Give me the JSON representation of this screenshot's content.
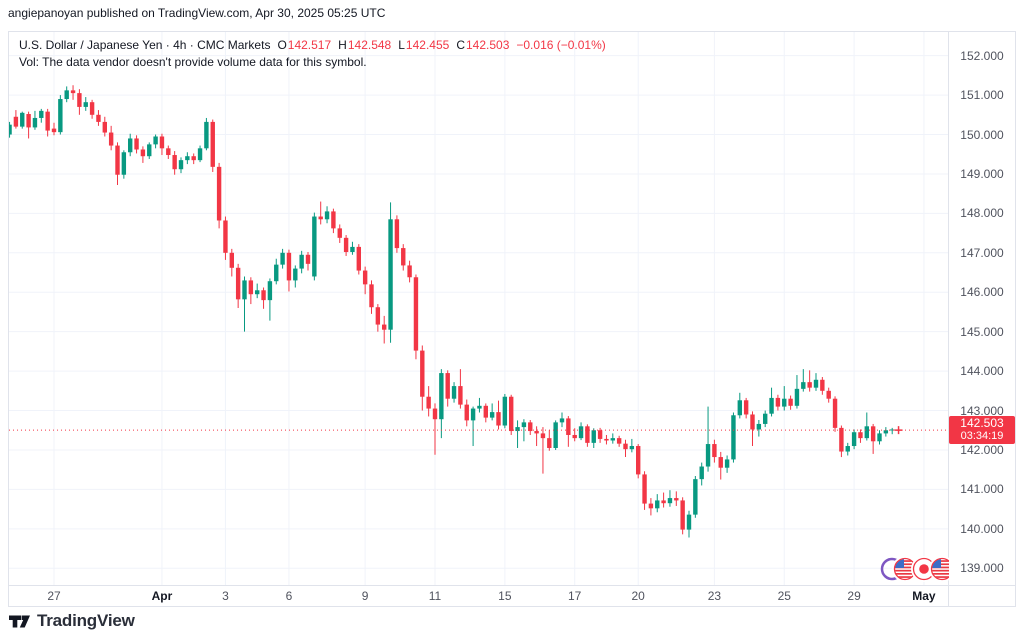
{
  "header": {
    "byline": "angiepanoyan published on TradingView.com, Apr 30, 2025 05:25 UTC"
  },
  "legend": {
    "title": "U.S. Dollar / Japanese Yen · 4h · CMC Markets",
    "ohlc": [
      {
        "label": "O",
        "value": "142.517"
      },
      {
        "label": "H",
        "value": "142.548"
      },
      {
        "label": "L",
        "value": "142.455"
      },
      {
        "label": "C",
        "value": "142.503"
      }
    ],
    "change": "−0.016 (−0.01%)",
    "vol_note": "Vol: The data vendor doesn't provide volume data for this symbol."
  },
  "price_scale": {
    "last_price_label": {
      "price": "142.503",
      "countdown": "03:34:19"
    }
  },
  "time_scale": {
    "labels": [
      {
        "index": 8,
        "text": "27",
        "bold": false
      },
      {
        "index": 25,
        "text": "Apr",
        "bold": true
      },
      {
        "index": 35,
        "text": "3",
        "bold": false
      },
      {
        "index": 45,
        "text": "6",
        "bold": false
      },
      {
        "index": 57,
        "text": "9",
        "bold": false
      },
      {
        "index": 68,
        "text": "11",
        "bold": false
      },
      {
        "index": 79,
        "text": "15",
        "bold": false
      },
      {
        "index": 90,
        "text": "17",
        "bold": false
      },
      {
        "index": 100,
        "text": "20",
        "bold": false
      },
      {
        "index": 112,
        "text": "23",
        "bold": false
      },
      {
        "index": 123,
        "text": "25",
        "bold": false
      },
      {
        "index": 134,
        "text": "29",
        "bold": false
      },
      {
        "index": 145,
        "text": "May",
        "bold": true
      }
    ]
  },
  "watermark_flags": [
    "us-flag",
    "japan-flag",
    "us-flag"
  ],
  "footer": {
    "brand": "TradingView"
  },
  "colors": {
    "up": "#089981",
    "down": "#f23645",
    "grid": "#f0f3fa",
    "border": "#e0e3eb",
    "text": "#131722",
    "scale_text": "#50535e",
    "badge_bg": "#f23645",
    "badge_text": "#ffffff"
  },
  "chart_data": {
    "type": "candlestick",
    "title": "U.S. Dollar / Japanese Yen",
    "interval": "4h",
    "exchange": "CMC Markets",
    "current_price": 142.503,
    "last_bar": {
      "open": 142.517,
      "high": 142.548,
      "low": 142.455,
      "close": 142.503
    },
    "price_axis": {
      "max": 152.6,
      "min": 138.55,
      "gridline_step": 1.0,
      "gridlines": [
        139,
        140,
        141,
        142,
        143,
        144,
        145,
        146,
        147,
        148,
        149,
        150,
        151,
        152
      ]
    },
    "x_axis": {
      "slots": 150,
      "origin": 2.2,
      "spacing": 6.35
    },
    "candles": [
      [
        149.82,
        150.05,
        149.68,
        150.0
      ],
      [
        150.0,
        150.32,
        149.92,
        150.25
      ],
      [
        150.45,
        150.62,
        150.15,
        150.2
      ],
      [
        150.2,
        150.58,
        150.15,
        150.55
      ],
      [
        150.52,
        150.58,
        149.9,
        150.18
      ],
      [
        150.18,
        150.6,
        150.12,
        150.42
      ],
      [
        150.42,
        150.65,
        150.3,
        150.6
      ],
      [
        150.58,
        150.65,
        149.95,
        150.1
      ],
      [
        150.15,
        150.3,
        149.98,
        150.06
      ],
      [
        150.06,
        151.0,
        150.0,
        150.9
      ],
      [
        150.9,
        151.22,
        150.82,
        151.12
      ],
      [
        151.12,
        151.25,
        150.88,
        151.05
      ],
      [
        151.05,
        151.15,
        150.5,
        150.7
      ],
      [
        150.7,
        150.95,
        150.6,
        150.82
      ],
      [
        150.82,
        150.88,
        150.4,
        150.5
      ],
      [
        150.5,
        150.62,
        150.22,
        150.32
      ],
      [
        150.32,
        150.45,
        149.95,
        150.05
      ],
      [
        150.05,
        150.22,
        149.6,
        149.72
      ],
      [
        149.72,
        149.8,
        148.72,
        148.98
      ],
      [
        148.98,
        149.6,
        148.88,
        149.55
      ],
      [
        149.55,
        150.02,
        149.45,
        149.9
      ],
      [
        149.9,
        149.98,
        149.52,
        149.62
      ],
      [
        149.62,
        149.7,
        149.28,
        149.45
      ],
      [
        149.45,
        149.8,
        149.38,
        149.75
      ],
      [
        149.75,
        150.0,
        149.65,
        149.95
      ],
      [
        149.95,
        150.02,
        149.48,
        149.65
      ],
      [
        149.65,
        149.72,
        149.38,
        149.48
      ],
      [
        149.48,
        149.58,
        148.98,
        149.12
      ],
      [
        149.12,
        149.42,
        149.02,
        149.35
      ],
      [
        149.35,
        149.55,
        149.25,
        149.45
      ],
      [
        149.45,
        149.52,
        149.25,
        149.35
      ],
      [
        149.35,
        149.72,
        149.3,
        149.65
      ],
      [
        149.65,
        150.42,
        149.6,
        150.32
      ],
      [
        150.32,
        150.38,
        149.05,
        149.18
      ],
      [
        149.18,
        149.28,
        147.62,
        147.82
      ],
      [
        147.82,
        147.92,
        146.82,
        147.0
      ],
      [
        147.0,
        147.1,
        146.4,
        146.62
      ],
      [
        146.62,
        146.72,
        145.6,
        145.82
      ],
      [
        145.82,
        146.4,
        145.0,
        146.3
      ],
      [
        146.3,
        146.38,
        145.7,
        145.95
      ],
      [
        145.95,
        146.22,
        145.85,
        146.05
      ],
      [
        146.05,
        146.12,
        145.58,
        145.8
      ],
      [
        145.8,
        146.35,
        145.28,
        146.28
      ],
      [
        146.28,
        146.85,
        146.2,
        146.7
      ],
      [
        146.7,
        147.1,
        146.6,
        147.0
      ],
      [
        147.0,
        147.08,
        146.02,
        146.3
      ],
      [
        146.3,
        146.68,
        146.12,
        146.6
      ],
      [
        146.6,
        147.05,
        146.48,
        146.95
      ],
      [
        146.95,
        147.02,
        146.55,
        146.72
      ],
      [
        146.4,
        148.02,
        146.3,
        147.92
      ],
      [
        147.92,
        148.3,
        147.72,
        147.85
      ],
      [
        147.85,
        148.18,
        147.75,
        148.05
      ],
      [
        148.05,
        148.12,
        147.5,
        147.62
      ],
      [
        147.62,
        147.72,
        147.25,
        147.38
      ],
      [
        147.38,
        147.45,
        146.92,
        147.02
      ],
      [
        147.02,
        147.28,
        146.95,
        147.15
      ],
      [
        147.15,
        147.22,
        146.45,
        146.55
      ],
      [
        146.55,
        146.65,
        145.95,
        146.2
      ],
      [
        146.2,
        146.3,
        145.45,
        145.62
      ],
      [
        145.62,
        145.7,
        145.0,
        145.18
      ],
      [
        145.18,
        145.4,
        144.7,
        145.05
      ],
      [
        145.05,
        148.28,
        144.72,
        147.85
      ],
      [
        147.85,
        147.95,
        147.0,
        147.12
      ],
      [
        147.12,
        147.22,
        146.55,
        146.68
      ],
      [
        146.68,
        146.8,
        146.25,
        146.38
      ],
      [
        146.38,
        146.45,
        144.3,
        144.52
      ],
      [
        144.52,
        144.65,
        143.0,
        143.35
      ],
      [
        143.35,
        143.62,
        142.85,
        143.05
      ],
      [
        143.05,
        143.18,
        141.88,
        142.78
      ],
      [
        142.78,
        144.05,
        142.3,
        143.95
      ],
      [
        143.95,
        144.02,
        143.1,
        143.3
      ],
      [
        143.3,
        143.72,
        143.2,
        143.62
      ],
      [
        143.62,
        144.05,
        143.05,
        143.15
      ],
      [
        143.15,
        143.28,
        142.6,
        142.75
      ],
      [
        142.75,
        143.1,
        142.1,
        143.05
      ],
      [
        143.05,
        143.32,
        142.95,
        143.12
      ],
      [
        143.12,
        143.18,
        142.7,
        142.82
      ],
      [
        142.82,
        143.18,
        142.75,
        142.96
      ],
      [
        142.96,
        143.25,
        142.52,
        142.62
      ],
      [
        142.62,
        143.42,
        142.55,
        143.35
      ],
      [
        143.35,
        143.4,
        142.38,
        142.48
      ],
      [
        142.48,
        142.75,
        142.05,
        142.58
      ],
      [
        142.58,
        142.78,
        142.22,
        142.7
      ],
      [
        142.7,
        142.76,
        142.38,
        142.48
      ],
      [
        142.48,
        142.6,
        142.1,
        142.42
      ],
      [
        142.42,
        142.58,
        141.4,
        142.3
      ],
      [
        142.3,
        142.5,
        141.98,
        142.05
      ],
      [
        142.05,
        142.75,
        142.0,
        142.7
      ],
      [
        142.7,
        142.95,
        142.58,
        142.8
      ],
      [
        142.8,
        142.86,
        142.08,
        142.38
      ],
      [
        142.38,
        142.55,
        142.22,
        142.3
      ],
      [
        142.3,
        142.7,
        142.25,
        142.6
      ],
      [
        142.6,
        142.65,
        142.08,
        142.18
      ],
      [
        142.18,
        142.55,
        142.05,
        142.5
      ],
      [
        142.5,
        142.56,
        142.18,
        142.28
      ],
      [
        142.28,
        142.38,
        142.14,
        142.24
      ],
      [
        142.24,
        142.42,
        142.16,
        142.3
      ],
      [
        142.3,
        142.36,
        142.08,
        142.16
      ],
      [
        142.16,
        142.26,
        141.82,
        142.02
      ],
      [
        142.02,
        142.28,
        141.94,
        142.1
      ],
      [
        142.1,
        142.15,
        141.28,
        141.38
      ],
      [
        141.38,
        141.46,
        140.48,
        140.64
      ],
      [
        140.64,
        140.78,
        140.34,
        140.52
      ],
      [
        140.52,
        140.88,
        140.42,
        140.72
      ],
      [
        140.72,
        140.92,
        140.54,
        140.65
      ],
      [
        140.65,
        140.98,
        140.56,
        140.78
      ],
      [
        140.78,
        140.95,
        140.58,
        140.72
      ],
      [
        140.72,
        140.8,
        139.86,
        139.98
      ],
      [
        139.98,
        140.46,
        139.78,
        140.36
      ],
      [
        140.36,
        141.34,
        140.28,
        141.26
      ],
      [
        141.26,
        141.68,
        141.1,
        141.58
      ],
      [
        141.58,
        143.1,
        141.45,
        142.15
      ],
      [
        142.15,
        142.26,
        141.68,
        141.82
      ],
      [
        141.82,
        141.95,
        141.25,
        141.55
      ],
      [
        141.55,
        141.86,
        141.42,
        141.76
      ],
      [
        141.76,
        142.95,
        141.68,
        142.88
      ],
      [
        142.88,
        143.45,
        142.8,
        143.26
      ],
      [
        143.26,
        143.32,
        142.8,
        142.9
      ],
      [
        142.9,
        142.98,
        142.1,
        142.52
      ],
      [
        142.52,
        142.76,
        142.34,
        142.66
      ],
      [
        142.66,
        143.0,
        142.58,
        142.92
      ],
      [
        142.92,
        143.58,
        142.85,
        143.32
      ],
      [
        143.32,
        143.4,
        143.0,
        143.1
      ],
      [
        143.1,
        143.62,
        143.0,
        143.3
      ],
      [
        143.3,
        143.38,
        143.02,
        143.12
      ],
      [
        143.12,
        143.9,
        143.05,
        143.55
      ],
      [
        143.55,
        144.05,
        143.48,
        143.72
      ],
      [
        143.72,
        144.02,
        143.48,
        143.58
      ],
      [
        143.58,
        143.95,
        143.5,
        143.78
      ],
      [
        143.78,
        143.85,
        143.4,
        143.5
      ],
      [
        143.5,
        143.58,
        143.2,
        143.3
      ],
      [
        143.3,
        143.36,
        142.46,
        142.56
      ],
      [
        142.56,
        142.62,
        141.82,
        141.96
      ],
      [
        141.96,
        142.18,
        141.86,
        142.1
      ],
      [
        142.1,
        142.52,
        142.02,
        142.45
      ],
      [
        142.45,
        142.52,
        142.18,
        142.3
      ],
      [
        142.3,
        142.95,
        142.24,
        142.6
      ],
      [
        142.6,
        142.66,
        141.9,
        142.22
      ],
      [
        142.22,
        142.5,
        142.14,
        142.42
      ],
      [
        142.42,
        142.58,
        142.34,
        142.5
      ],
      [
        142.5,
        142.56,
        142.4,
        142.52
      ],
      [
        142.517,
        142.548,
        142.455,
        142.503
      ]
    ]
  }
}
